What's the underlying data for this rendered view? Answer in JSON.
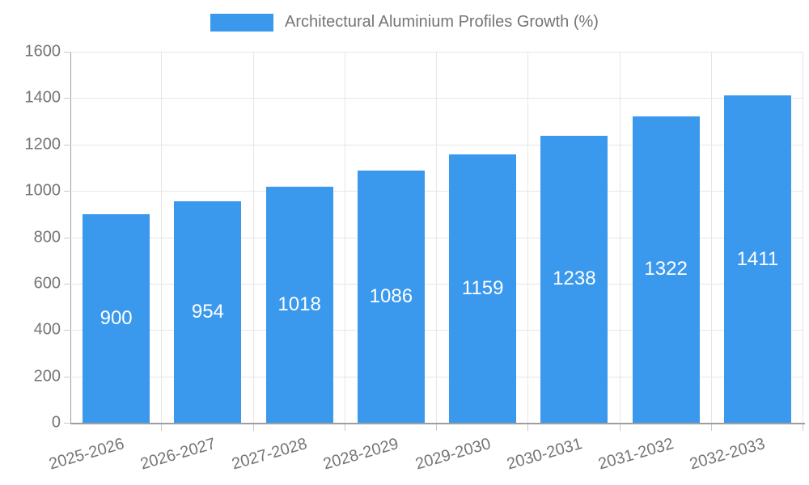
{
  "chart_data": {
    "type": "bar",
    "title": "Architectural Aluminium Profiles Growth (%)",
    "legend": {
      "position": "top",
      "entries": [
        "Architectural Aluminium Profiles Growth (%)"
      ]
    },
    "categories": [
      "2025-2026",
      "2026-2027",
      "2027-2028",
      "2028-2029",
      "2029-2030",
      "2030-2031",
      "2031-2032",
      "2032-2033"
    ],
    "values": [
      900,
      954,
      1018,
      1086,
      1159,
      1238,
      1322,
      1411
    ],
    "xlabel": "",
    "ylabel": "",
    "ylim": [
      0,
      1600
    ],
    "y_ticks": [
      0,
      200,
      400,
      600,
      800,
      1000,
      1200,
      1400,
      1600
    ],
    "grid": true,
    "x_label_rotation_deg": -16,
    "colors": {
      "bar": "#3b99ed",
      "bar_value_label": "#ffffff",
      "axis_text": "#757575",
      "grid_line": "#e6e6e6",
      "axis_line": "#9e9e9e",
      "tick_mark": "#c9c9c9",
      "background": "#ffffff"
    }
  }
}
